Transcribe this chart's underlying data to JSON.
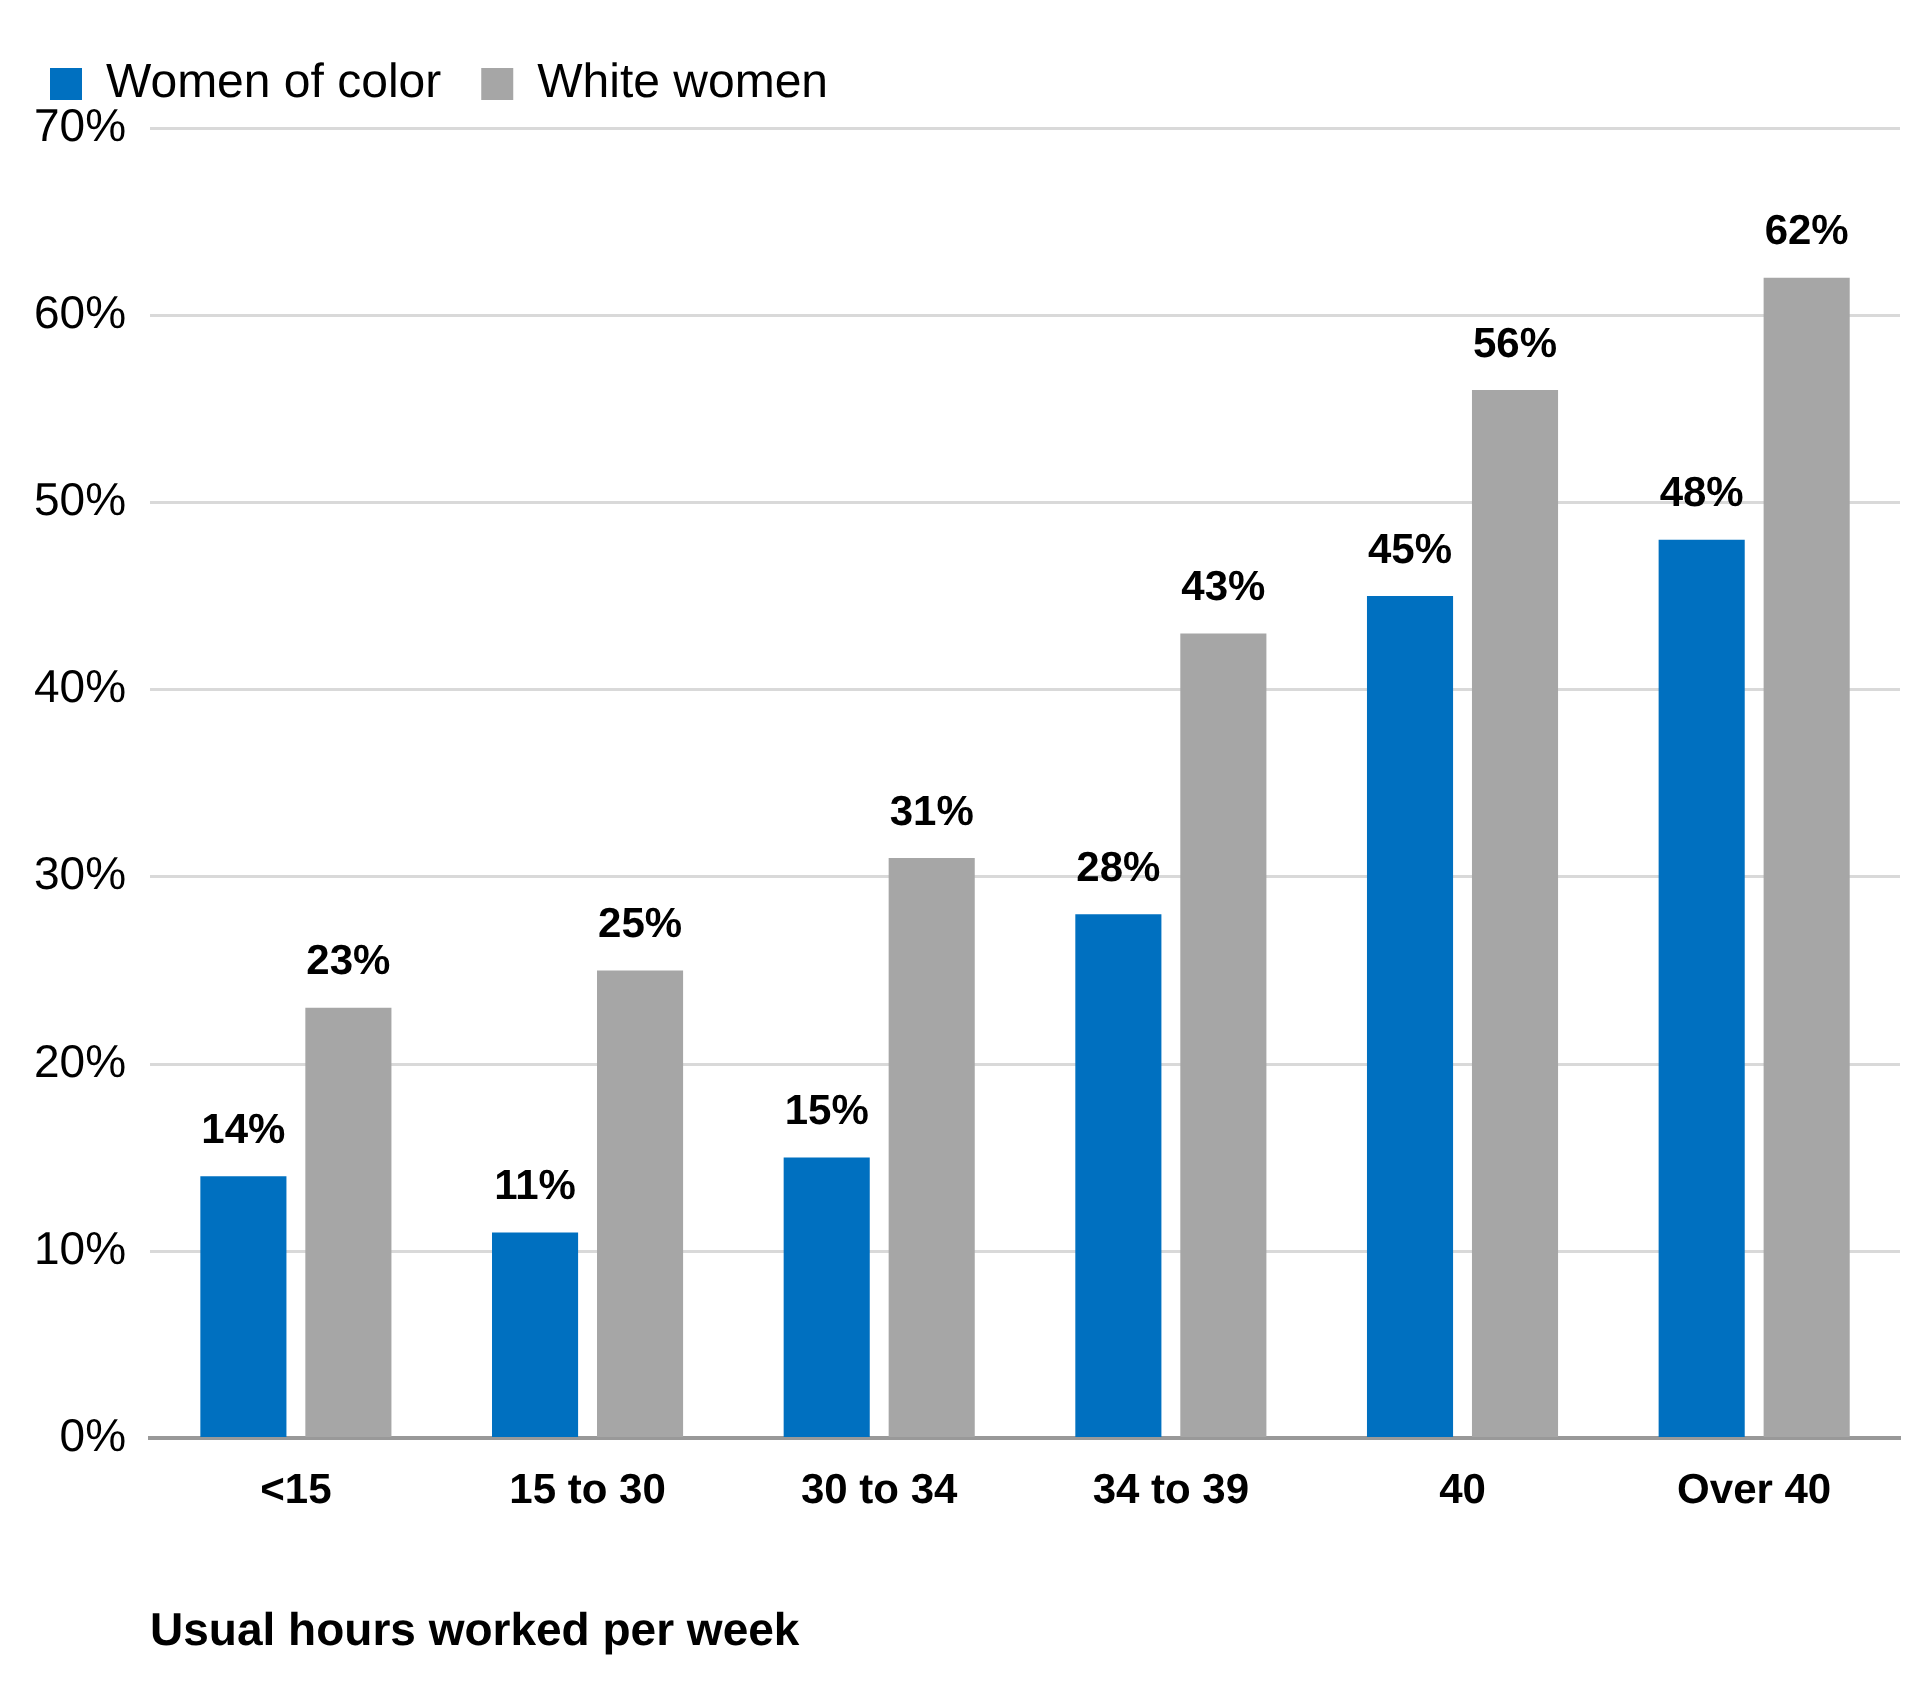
{
  "chart_data": {
    "type": "bar",
    "xlabel": "Usual hours worked per week",
    "categories": [
      "<15",
      "15 to 30",
      "30 to 34",
      "34 to 39",
      "40",
      "Over 40"
    ],
    "series": [
      {
        "name": "Women of color",
        "color": "#0070c0",
        "values": [
          14,
          11,
          15,
          28,
          45,
          48
        ],
        "value_labels": [
          "14%",
          "11%",
          "15%",
          "28%",
          "45%",
          "48%"
        ]
      },
      {
        "name": "White women",
        "color": "#a6a6a6",
        "values": [
          23,
          25,
          31,
          43,
          56,
          62
        ],
        "value_labels": [
          "23%",
          "25%",
          "31%",
          "43%",
          "56%",
          "62%"
        ]
      }
    ],
    "ylim": [
      0,
      70
    ],
    "yticks": [
      {
        "value": 0,
        "label": "0%"
      },
      {
        "value": 10,
        "label": "10%"
      },
      {
        "value": 20,
        "label": "20%"
      },
      {
        "value": 30,
        "label": "30%"
      },
      {
        "value": 40,
        "label": "40%"
      },
      {
        "value": 50,
        "label": "50%"
      },
      {
        "value": 60,
        "label": "60%"
      },
      {
        "value": 70,
        "label": "70%"
      }
    ],
    "grid": "y",
    "legend": "top left"
  }
}
